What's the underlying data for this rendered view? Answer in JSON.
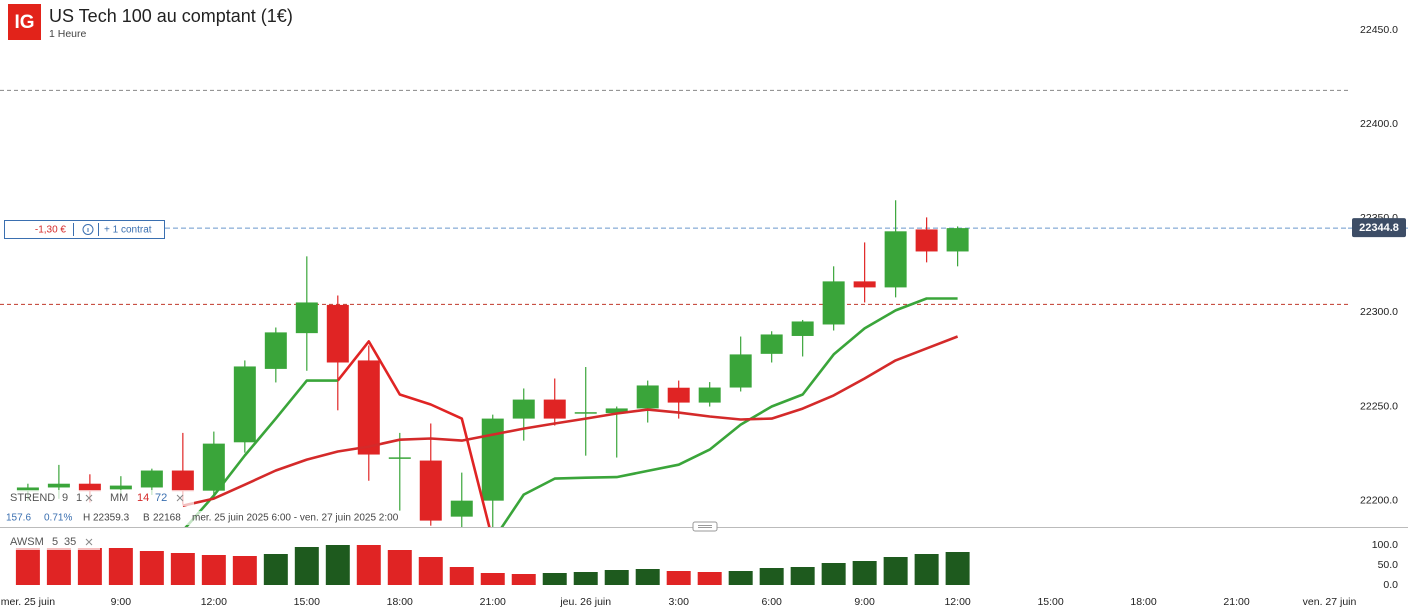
{
  "header": {
    "logo": "IG",
    "title": "US Tech 100 au comptant (1€)",
    "interval": "1 Heure"
  },
  "position": {
    "pnl": "-1,30 €",
    "size": "+ 1 contrat"
  },
  "indicators": {
    "strend": {
      "name": "STREND",
      "params": [
        9,
        1
      ]
    },
    "mm": {
      "name": "MM",
      "params": [
        14,
        72
      ]
    },
    "awsm": {
      "name": "AWSM",
      "params": [
        5,
        35
      ]
    }
  },
  "info": {
    "change": 157.6,
    "change_pct": "0.71%",
    "high_label": "H",
    "high": 22359.3,
    "low_label": "B",
    "low": 22168,
    "range": "mer. 25 juin 2025 6:00 - ven. 27 juin 2025 2:00"
  },
  "chart_data": [
    {
      "type": "candlestick",
      "open": [
        22205,
        22207,
        22209,
        22206,
        22207,
        22216,
        22205.3,
        22231,
        22270,
        22289,
        22304,
        22274.5,
        22222.5,
        22221.3,
        22191.5,
        22200,
        22243.6,
        22253.7,
        22246.5,
        22246.5,
        22249,
        22260,
        22252.1,
        22260.1,
        22278,
        22287.5,
        22293.6,
        22316.5,
        22313.3,
        22344.1,
        22332.4
      ],
      "high": [
        22209,
        22219,
        22214,
        22213,
        22217,
        22236,
        22236.7,
        22274.5,
        22292,
        22329.8,
        22309,
        22282.4,
        22236,
        22241,
        22214.9,
        22245.7,
        22259.6,
        22264.9,
        22271,
        22250,
        22263.8,
        22263.8,
        22263,
        22287.2,
        22290,
        22296,
        22324.5,
        22337.2,
        22359.6,
        22350.5,
        22345.7
      ],
      "low": [
        22200,
        22201,
        22199,
        22203,
        22203,
        22198,
        22202.7,
        22225.5,
        22262.8,
        22269,
        22248,
        22210.6,
        22194.7,
        22186.7,
        22186,
        22186,
        22231.9,
        22239.9,
        22223.9,
        22222.9,
        22241.5,
        22243.6,
        22250,
        22258,
        22273.4,
        22276.6,
        22290.4,
        22305.3,
        22308,
        22326.6,
        22324.5
      ],
      "close": [
        22207,
        22209,
        22205,
        22208,
        22216,
        22205,
        22230.3,
        22271.3,
        22289.4,
        22305.3,
        22273.4,
        22224.5,
        22223,
        22189.4,
        22200,
        22243.6,
        22253.7,
        22243.6,
        22247,
        22249,
        22261.2,
        22252.1,
        22260.1,
        22277.7,
        22288.3,
        22295.2,
        22316.5,
        22313.3,
        22343.1,
        22332.4,
        22344.8
      ],
      "up_color": "#3aa53a",
      "down_color": "#e02424",
      "series": [
        {
          "color": "#3aa53a",
          "values": [
            null,
            null,
            null,
            null,
            null,
            22184,
            22202.7,
            22224,
            22243.6,
            22263.8,
            22263.8,
            null,
            null,
            null,
            null,
            22178.7,
            22203.2,
            22211.7,
            22212.2,
            22212.5,
            22215.8,
            22219.1,
            22227.1,
            22240.4,
            22250,
            22256.4,
            22277.7,
            22291.5,
            22301.1,
            22307.4,
            22307.4
          ]
        },
        {
          "color": "#e02424",
          "values": [
            null,
            null,
            null,
            null,
            null,
            null,
            null,
            null,
            null,
            null,
            22263.8,
            22284.6,
            22256.4,
            22251.1,
            22243.6,
            22178.7,
            null,
            null,
            null,
            null,
            null,
            null,
            null,
            null,
            null,
            null,
            null,
            null,
            null,
            null,
            null
          ]
        },
        {
          "color": "#d42a2a",
          "values": [
            null,
            null,
            null,
            null,
            null,
            22197.3,
            22201.1,
            22208.5,
            22216,
            22221.8,
            22226.1,
            22228.7,
            22232.4,
            22233,
            22231.9,
            22235.1,
            22238.3,
            22241,
            22243.6,
            22246.3,
            22248.4,
            22246.8,
            22244.7,
            22243.1,
            22243.6,
            22248.9,
            22255.9,
            22264.9,
            22274.5,
            22280.9,
            22287.2
          ]
        }
      ],
      "levels": [
        {
          "value": 22418,
          "color": "#888888"
        },
        {
          "value": 22304.3,
          "color": "#c0392b"
        }
      ],
      "last_price": 22344.8,
      "xlim": [
        -0.9,
        42.5
      ],
      "xticks": [
        {
          "value": 0,
          "label": "mer. 25 juin"
        },
        {
          "value": 3,
          "label": "9:00"
        },
        {
          "value": 6,
          "label": "12:00"
        },
        {
          "value": 9,
          "label": "15:00"
        },
        {
          "value": 12,
          "label": "18:00"
        },
        {
          "value": 15,
          "label": "21:00"
        },
        {
          "value": 18,
          "label": "jeu. 26 juin"
        },
        {
          "value": 21,
          "label": "3:00"
        },
        {
          "value": 24,
          "label": "6:00"
        },
        {
          "value": 27,
          "label": "9:00"
        },
        {
          "value": 30,
          "label": "12:00"
        },
        {
          "value": 33,
          "label": "15:00"
        },
        {
          "value": 36,
          "label": "18:00"
        },
        {
          "value": 39,
          "label": "21:00"
        },
        {
          "value": 42,
          "label": "ven. 27 juin"
        }
      ],
      "ylim": [
        22186,
        22466
      ],
      "yticks": [
        {
          "value": 22200,
          "label": "22200.0"
        },
        {
          "value": 22250,
          "label": "22250.0"
        },
        {
          "value": 22300,
          "label": "22300.0"
        },
        {
          "value": 22350,
          "label": "22350.0"
        },
        {
          "value": 22400,
          "label": "22400.0"
        },
        {
          "value": 22450,
          "label": "22450.0"
        }
      ]
    },
    {
      "type": "bar",
      "values": [
        92.5,
        92.5,
        92.5,
        92.5,
        85,
        80,
        75,
        72.5,
        77.5,
        95,
        100,
        100,
        87.5,
        70,
        45,
        30,
        27.5,
        30,
        32.5,
        37.5,
        40,
        35,
        32.5,
        35,
        42.5,
        45,
        55,
        60,
        70,
        77.5,
        82.5
      ],
      "colors": [
        "#e02424",
        "#e02424",
        "#e02424",
        "#e02424",
        "#e02424",
        "#e02424",
        "#e02424",
        "#e02424",
        "#1e5a1e",
        "#1e5a1e",
        "#1e5a1e",
        "#e02424",
        "#e02424",
        "#e02424",
        "#e02424",
        "#e02424",
        "#e02424",
        "#1e5a1e",
        "#1e5a1e",
        "#1e5a1e",
        "#1e5a1e",
        "#e02424",
        "#e02424",
        "#1e5a1e",
        "#1e5a1e",
        "#1e5a1e",
        "#1e5a1e",
        "#1e5a1e",
        "#1e5a1e",
        "#1e5a1e",
        "#1e5a1e"
      ],
      "xlim": [
        -0.9,
        42.5
      ],
      "ylim": [
        -17.5,
        130
      ],
      "yticks": [
        {
          "value": 0,
          "label": "0.0"
        },
        {
          "value": 50,
          "label": "50.0"
        },
        {
          "value": 100,
          "label": "100.0"
        }
      ]
    }
  ]
}
